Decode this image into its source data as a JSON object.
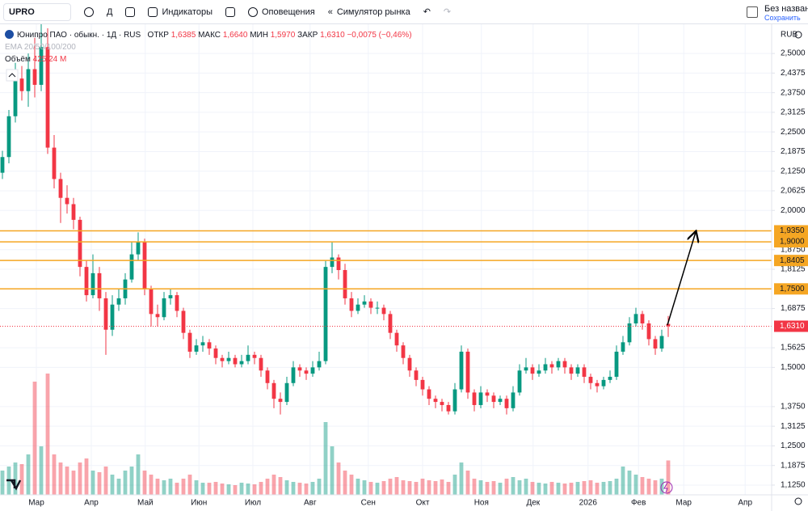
{
  "toolbar": {
    "symbol": "UPRO",
    "interval": "Д",
    "indicators": "Индикаторы",
    "alerts": "Оповещения",
    "replay": "Симулятор рынка",
    "layout_name": "Без названи",
    "save": "Сохранить"
  },
  "legend": {
    "title": "Юнипро ПАО · обыкн. · 1Д · RUS",
    "open_label": "ОТКР",
    "open": "1,6385",
    "high_label": "МАКС",
    "high": "1,6640",
    "low_label": "МИН",
    "low": "1,5970",
    "close_label": "ЗАКР",
    "close": "1,6310",
    "change": "−0,0075 (−0,46%)",
    "ema": "EMA 20/50/100/200",
    "volume_label": "Объём",
    "volume": "425,24 M"
  },
  "chart_data": {
    "type": "candlestick",
    "currency": "RUB",
    "up_color": "#089981",
    "down_color": "#f23645",
    "level_color": "#f5a623",
    "candles": [
      [
        2.12,
        2.19,
        2.1,
        2.17
      ],
      [
        2.17,
        2.32,
        2.15,
        2.3
      ],
      [
        2.3,
        2.47,
        2.28,
        2.42
      ],
      [
        2.42,
        2.46,
        2.35,
        2.38
      ],
      [
        2.38,
        2.5,
        2.33,
        2.45
      ],
      [
        2.45,
        2.55,
        2.36,
        2.4
      ],
      [
        2.4,
        2.6,
        2.38,
        2.52
      ],
      [
        2.52,
        2.58,
        2.18,
        2.2
      ],
      [
        2.2,
        2.24,
        2.07,
        2.1
      ],
      [
        2.1,
        2.12,
        1.96,
        2.04
      ],
      [
        2.04,
        2.08,
        1.99,
        2.02
      ],
      [
        2.02,
        2.04,
        1.94,
        1.97
      ],
      [
        1.97,
        1.98,
        1.79,
        1.82
      ],
      [
        1.82,
        1.84,
        1.71,
        1.73
      ],
      [
        1.73,
        1.86,
        1.72,
        1.8
      ],
      [
        1.8,
        1.82,
        1.68,
        1.72
      ],
      [
        1.72,
        1.74,
        1.54,
        1.62
      ],
      [
        1.62,
        1.73,
        1.6,
        1.7
      ],
      [
        1.7,
        1.75,
        1.68,
        1.72
      ],
      [
        1.72,
        1.8,
        1.7,
        1.78
      ],
      [
        1.78,
        1.9,
        1.77,
        1.86
      ],
      [
        1.86,
        1.93,
        1.84,
        1.9
      ],
      [
        1.9,
        1.91,
        1.73,
        1.75
      ],
      [
        1.75,
        1.76,
        1.63,
        1.67
      ],
      [
        1.67,
        1.7,
        1.63,
        1.66
      ],
      [
        1.66,
        1.74,
        1.65,
        1.72
      ],
      [
        1.72,
        1.75,
        1.7,
        1.73
      ],
      [
        1.73,
        1.74,
        1.66,
        1.68
      ],
      [
        1.68,
        1.69,
        1.59,
        1.61
      ],
      [
        1.61,
        1.62,
        1.53,
        1.55
      ],
      [
        1.55,
        1.59,
        1.54,
        1.57
      ],
      [
        1.57,
        1.6,
        1.55,
        1.58
      ],
      [
        1.58,
        1.59,
        1.54,
        1.56
      ],
      [
        1.56,
        1.57,
        1.51,
        1.53
      ],
      [
        1.53,
        1.54,
        1.5,
        1.52
      ],
      [
        1.52,
        1.55,
        1.51,
        1.53
      ],
      [
        1.53,
        1.54,
        1.5,
        1.51
      ],
      [
        1.51,
        1.54,
        1.5,
        1.52
      ],
      [
        1.52,
        1.57,
        1.51,
        1.54
      ],
      [
        1.54,
        1.55,
        1.51,
        1.53
      ],
      [
        1.53,
        1.54,
        1.47,
        1.49
      ],
      [
        1.49,
        1.5,
        1.43,
        1.45
      ],
      [
        1.45,
        1.46,
        1.37,
        1.4
      ],
      [
        1.4,
        1.42,
        1.35,
        1.39
      ],
      [
        1.39,
        1.47,
        1.38,
        1.45
      ],
      [
        1.45,
        1.52,
        1.44,
        1.5
      ],
      [
        1.5,
        1.51,
        1.47,
        1.49
      ],
      [
        1.49,
        1.5,
        1.46,
        1.48
      ],
      [
        1.48,
        1.52,
        1.47,
        1.5
      ],
      [
        1.5,
        1.55,
        1.49,
        1.52
      ],
      [
        1.52,
        1.84,
        1.51,
        1.82
      ],
      [
        1.82,
        1.9,
        1.8,
        1.85
      ],
      [
        1.85,
        1.86,
        1.78,
        1.81
      ],
      [
        1.81,
        1.83,
        1.7,
        1.72
      ],
      [
        1.72,
        1.74,
        1.66,
        1.68
      ],
      [
        1.68,
        1.72,
        1.67,
        1.7
      ],
      [
        1.7,
        1.73,
        1.69,
        1.71
      ],
      [
        1.71,
        1.72,
        1.67,
        1.69
      ],
      [
        1.69,
        1.71,
        1.67,
        1.69
      ],
      [
        1.69,
        1.7,
        1.65,
        1.67
      ],
      [
        1.67,
        1.68,
        1.59,
        1.61
      ],
      [
        1.61,
        1.62,
        1.55,
        1.57
      ],
      [
        1.57,
        1.58,
        1.51,
        1.53
      ],
      [
        1.53,
        1.54,
        1.47,
        1.49
      ],
      [
        1.49,
        1.5,
        1.44,
        1.46
      ],
      [
        1.46,
        1.47,
        1.41,
        1.43
      ],
      [
        1.43,
        1.44,
        1.38,
        1.4
      ],
      [
        1.4,
        1.41,
        1.37,
        1.39
      ],
      [
        1.39,
        1.4,
        1.36,
        1.38
      ],
      [
        1.38,
        1.39,
        1.35,
        1.36
      ],
      [
        1.36,
        1.45,
        1.35,
        1.43
      ],
      [
        1.43,
        1.57,
        1.42,
        1.55
      ],
      [
        1.55,
        1.56,
        1.4,
        1.42
      ],
      [
        1.42,
        1.43,
        1.36,
        1.38
      ],
      [
        1.38,
        1.44,
        1.37,
        1.42
      ],
      [
        1.42,
        1.43,
        1.39,
        1.41
      ],
      [
        1.41,
        1.42,
        1.37,
        1.39
      ],
      [
        1.39,
        1.41,
        1.38,
        1.4
      ],
      [
        1.4,
        1.41,
        1.35,
        1.37
      ],
      [
        1.37,
        1.44,
        1.36,
        1.42
      ],
      [
        1.42,
        1.51,
        1.41,
        1.49
      ],
      [
        1.49,
        1.53,
        1.48,
        1.5
      ],
      [
        1.5,
        1.51,
        1.46,
        1.48
      ],
      [
        1.48,
        1.51,
        1.47,
        1.49
      ],
      [
        1.49,
        1.53,
        1.48,
        1.51
      ],
      [
        1.51,
        1.52,
        1.48,
        1.5
      ],
      [
        1.5,
        1.53,
        1.49,
        1.52
      ],
      [
        1.52,
        1.53,
        1.48,
        1.5
      ],
      [
        1.5,
        1.51,
        1.46,
        1.48
      ],
      [
        1.48,
        1.51,
        1.47,
        1.5
      ],
      [
        1.5,
        1.51,
        1.45,
        1.47
      ],
      [
        1.47,
        1.48,
        1.43,
        1.45
      ],
      [
        1.45,
        1.46,
        1.42,
        1.44
      ],
      [
        1.44,
        1.47,
        1.43,
        1.46
      ],
      [
        1.46,
        1.49,
        1.45,
        1.47
      ],
      [
        1.47,
        1.57,
        1.46,
        1.55
      ],
      [
        1.55,
        1.6,
        1.54,
        1.58
      ],
      [
        1.58,
        1.66,
        1.57,
        1.64
      ],
      [
        1.64,
        1.69,
        1.63,
        1.67
      ],
      [
        1.67,
        1.68,
        1.62,
        1.64
      ],
      [
        1.64,
        1.65,
        1.57,
        1.59
      ],
      [
        1.59,
        1.6,
        1.54,
        1.56
      ],
      [
        1.56,
        1.62,
        1.55,
        1.6
      ],
      [
        1.6385,
        1.664,
        1.597,
        1.631
      ]
    ],
    "volume": [
      300,
      350,
      400,
      380,
      500,
      1400,
      600,
      1500,
      500,
      400,
      350,
      300,
      400,
      450,
      300,
      280,
      350,
      250,
      200,
      300,
      350,
      500,
      300,
      250,
      200,
      180,
      200,
      150,
      200,
      250,
      180,
      150,
      150,
      160,
      140,
      130,
      120,
      150,
      140,
      130,
      160,
      200,
      250,
      220,
      180,
      160,
      150,
      140,
      160,
      200,
      900,
      600,
      400,
      300,
      250,
      200,
      180,
      160,
      150,
      170,
      200,
      220,
      180,
      170,
      160,
      200,
      180,
      170,
      190,
      160,
      250,
      400,
      300,
      200,
      180,
      160,
      170,
      150,
      200,
      220,
      180,
      200,
      160,
      150,
      140,
      160,
      150,
      140,
      150,
      160,
      170,
      180,
      150,
      160,
      170,
      200,
      350,
      300,
      250,
      220,
      200,
      180,
      200,
      425.24
    ],
    "xlim": [
      -0.375,
      119
    ],
    "xticks": [
      {
        "value": 5.25,
        "label": "Мар"
      },
      {
        "value": 13.75,
        "label": "Апр"
      },
      {
        "value": 22.1,
        "label": "Май"
      },
      {
        "value": 30.4,
        "label": "Июн"
      },
      {
        "value": 38.75,
        "label": "Июл"
      },
      {
        "value": 47.6,
        "label": "Авг"
      },
      {
        "value": 56.6,
        "label": "Сен"
      },
      {
        "value": 65,
        "label": "Окт"
      },
      {
        "value": 74.1,
        "label": "Ноя"
      },
      {
        "value": 82.1,
        "label": "Дек"
      },
      {
        "value": 90.6,
        "label": "2026"
      },
      {
        "value": 98.4,
        "label": "Фев"
      },
      {
        "value": 105.4,
        "label": "Мар"
      },
      {
        "value": 114.9,
        "label": "Апр"
      }
    ],
    "ylim": [
      1.094,
      2.593
    ],
    "yticks": [
      {
        "value": 2.5,
        "label": "2,5000"
      },
      {
        "value": 2.4375,
        "label": "2,4375"
      },
      {
        "value": 2.375,
        "label": "2,3750"
      },
      {
        "value": 2.3125,
        "label": "2,3125"
      },
      {
        "value": 2.25,
        "label": "2,2500"
      },
      {
        "value": 2.1875,
        "label": "2,1875"
      },
      {
        "value": 2.125,
        "label": "2,1250"
      },
      {
        "value": 2.0625,
        "label": "2,0625"
      },
      {
        "value": 2,
        "label": "2,0000"
      },
      {
        "value": 1.875,
        "label": "1,8750"
      },
      {
        "value": 1.8125,
        "label": "1,8125"
      },
      {
        "value": 1.6875,
        "label": "1,6875"
      },
      {
        "value": 1.5625,
        "label": "1,5625"
      },
      {
        "value": 1.5,
        "label": "1,5000"
      },
      {
        "value": 1.375,
        "label": "1,3750"
      },
      {
        "value": 1.3125,
        "label": "1,3125"
      },
      {
        "value": 1.25,
        "label": "1,2500"
      },
      {
        "value": 1.1875,
        "label": "1,1875"
      },
      {
        "value": 1.125,
        "label": "1,1250"
      }
    ],
    "levels": [
      {
        "value": 1.935,
        "label": "1,9350"
      },
      {
        "value": 1.9,
        "label": "1,9000"
      },
      {
        "value": 1.8405,
        "label": "1,8405"
      },
      {
        "value": 1.75,
        "label": "1,7500"
      }
    ],
    "last_price": {
      "value": 1.631,
      "label": "1,6310"
    },
    "grid": true
  }
}
